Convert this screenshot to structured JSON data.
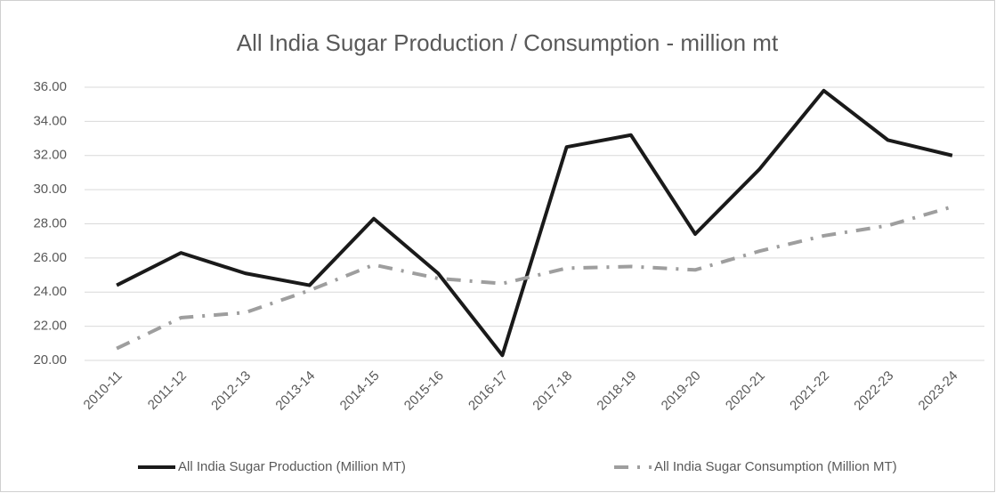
{
  "chart_data": {
    "type": "line",
    "title": "All India Sugar Production / Consumption - million mt",
    "categories": [
      "2010-11",
      "2011-12",
      "2012-13",
      "2013-14",
      "2014-15",
      "2015-16",
      "2016-17",
      "2017-18",
      "2018-19",
      "2019-20",
      "2020-21",
      "2021-22",
      "2022-23",
      "2023-24"
    ],
    "series": [
      {
        "name": "All India Sugar Production (Million MT)",
        "color": "#1a1a1a",
        "values": [
          24.4,
          26.3,
          25.1,
          24.4,
          28.3,
          25.1,
          20.3,
          32.5,
          33.2,
          27.4,
          31.2,
          35.8,
          32.9,
          32.0
        ]
      },
      {
        "name": "All India Sugar Consumption (Million MT)",
        "color": "#9e9e9e",
        "values": [
          20.7,
          22.5,
          22.8,
          24.1,
          25.6,
          24.8,
          24.5,
          25.4,
          25.5,
          25.3,
          26.4,
          27.3,
          27.9,
          29.0
        ]
      }
    ],
    "ylim": [
      20,
      36
    ],
    "yticks": [
      {
        "value": 20,
        "label": "20.00"
      },
      {
        "value": 22,
        "label": "22.00"
      },
      {
        "value": 24,
        "label": "24.00"
      },
      {
        "value": 26,
        "label": "26.00"
      },
      {
        "value": 28,
        "label": "28.00"
      },
      {
        "value": 30,
        "label": "30.00"
      },
      {
        "value": 32,
        "label": "32.00"
      },
      {
        "value": 34,
        "label": "34.00"
      },
      {
        "value": 36,
        "label": "36.00"
      }
    ],
    "grid": true,
    "legend": "bottom"
  }
}
